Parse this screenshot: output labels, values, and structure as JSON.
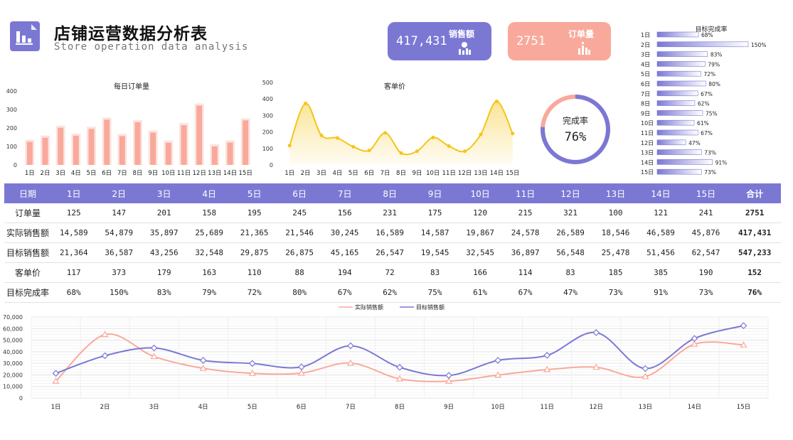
{
  "header": {
    "title": "店铺运营数据分析表",
    "subtitle": "Store operation data analysis"
  },
  "kpis": {
    "sales": {
      "value": "417,431",
      "label": "销售额",
      "icon": "money-bag-chart-icon"
    },
    "orders": {
      "value": "2751",
      "label": "订单量",
      "icon": "bar-chart-icon"
    }
  },
  "colors": {
    "accent": "#7b78d4",
    "salmon": "#f9a99b",
    "gold": "#f5c518"
  },
  "completion": {
    "label": "完成率",
    "value_text": "76%",
    "value": 0.76
  },
  "table": {
    "headers": [
      "日期",
      "1日",
      "2日",
      "3日",
      "4日",
      "5日",
      "6日",
      "7日",
      "8日",
      "9日",
      "10日",
      "11日",
      "12日",
      "13日",
      "14日",
      "15日",
      "合计"
    ],
    "rows": [
      {
        "label": "订单量",
        "cells": [
          "125",
          "147",
          "201",
          "158",
          "195",
          "245",
          "156",
          "231",
          "175",
          "120",
          "215",
          "321",
          "100",
          "121",
          "241"
        ],
        "total": "2751"
      },
      {
        "label": "实际销售额",
        "cells": [
          "14,589",
          "54,879",
          "35,897",
          "25,689",
          "21,365",
          "21,546",
          "30,245",
          "16,589",
          "14,587",
          "19,867",
          "24,578",
          "26,589",
          "18,546",
          "46,589",
          "45,876"
        ],
        "total": "417,431"
      },
      {
        "label": "目标销售额",
        "cells": [
          "21,364",
          "36,587",
          "43,256",
          "32,548",
          "29,875",
          "26,875",
          "45,165",
          "26,547",
          "19,545",
          "32,545",
          "36,897",
          "56,548",
          "25,478",
          "51,456",
          "62,547"
        ],
        "total": "547,233"
      },
      {
        "label": "客单价",
        "cells": [
          "117",
          "373",
          "179",
          "163",
          "110",
          "88",
          "194",
          "72",
          "83",
          "166",
          "114",
          "83",
          "185",
          "385",
          "190"
        ],
        "total": "152"
      },
      {
        "label": "目标完成率",
        "cells": [
          "68%",
          "150%",
          "83%",
          "79%",
          "72%",
          "80%",
          "67%",
          "62%",
          "75%",
          "61%",
          "67%",
          "47%",
          "73%",
          "91%",
          "73%"
        ],
        "total": "76%"
      }
    ]
  },
  "chart_data": [
    {
      "type": "bar",
      "title": "每日订单量",
      "categories": [
        "1日",
        "2日",
        "3日",
        "4日",
        "5日",
        "6日",
        "7日",
        "8日",
        "9日",
        "10日",
        "11日",
        "12日",
        "13日",
        "14日",
        "15日"
      ],
      "values": [
        125,
        147,
        201,
        158,
        195,
        245,
        156,
        231,
        175,
        120,
        215,
        321,
        100,
        121,
        241
      ],
      "ylim": [
        0,
        400
      ],
      "yticks": [
        "0",
        "100",
        "200",
        "300",
        "400"
      ]
    },
    {
      "type": "area",
      "title": "客单价",
      "categories": [
        "1日",
        "2日",
        "3日",
        "4日",
        "5日",
        "6日",
        "7日",
        "8日",
        "9日",
        "10日",
        "11日",
        "12日",
        "13日",
        "14日",
        "15日"
      ],
      "values": [
        117,
        373,
        179,
        163,
        110,
        88,
        194,
        72,
        83,
        166,
        114,
        83,
        185,
        385,
        190
      ],
      "ylim": [
        0,
        500
      ],
      "yticks": [
        "0",
        "100",
        "200",
        "300",
        "400",
        "500"
      ]
    },
    {
      "type": "bar",
      "title": "目标完成率",
      "orientation": "horizontal",
      "categories": [
        "1日",
        "2日",
        "3日",
        "4日",
        "5日",
        "6日",
        "7日",
        "8日",
        "9日",
        "10日",
        "11日",
        "12日",
        "13日",
        "14日",
        "15日"
      ],
      "values": [
        68,
        150,
        83,
        79,
        72,
        80,
        67,
        62,
        75,
        61,
        67,
        47,
        73,
        91,
        73
      ],
      "labels": [
        "68%",
        "150%",
        "83%",
        "79%",
        "72%",
        "80%",
        "67%",
        "62%",
        "75%",
        "61%",
        "67%",
        "47%",
        "73%",
        "91%",
        "73%"
      ]
    },
    {
      "type": "line",
      "categories": [
        "1日",
        "2日",
        "3日",
        "4日",
        "5日",
        "6日",
        "7日",
        "8日",
        "9日",
        "10日",
        "11日",
        "12日",
        "13日",
        "14日",
        "15日"
      ],
      "series": [
        {
          "name": "实际销售额",
          "values": [
            14589,
            54879,
            35897,
            25689,
            21365,
            21546,
            30245,
            16589,
            14587,
            19867,
            24578,
            26589,
            18546,
            46589,
            45876
          ]
        },
        {
          "name": "目标销售额",
          "values": [
            21364,
            36587,
            43256,
            32548,
            29875,
            26875,
            45165,
            26547,
            19545,
            32545,
            36897,
            56548,
            25478,
            51456,
            62547
          ]
        }
      ],
      "ylim": [
        0,
        70000
      ],
      "yticks": [
        "0",
        "10,000",
        "20,000",
        "30,000",
        "40,000",
        "50,000",
        "60,000",
        "70,000"
      ],
      "legend": "top-center"
    }
  ]
}
